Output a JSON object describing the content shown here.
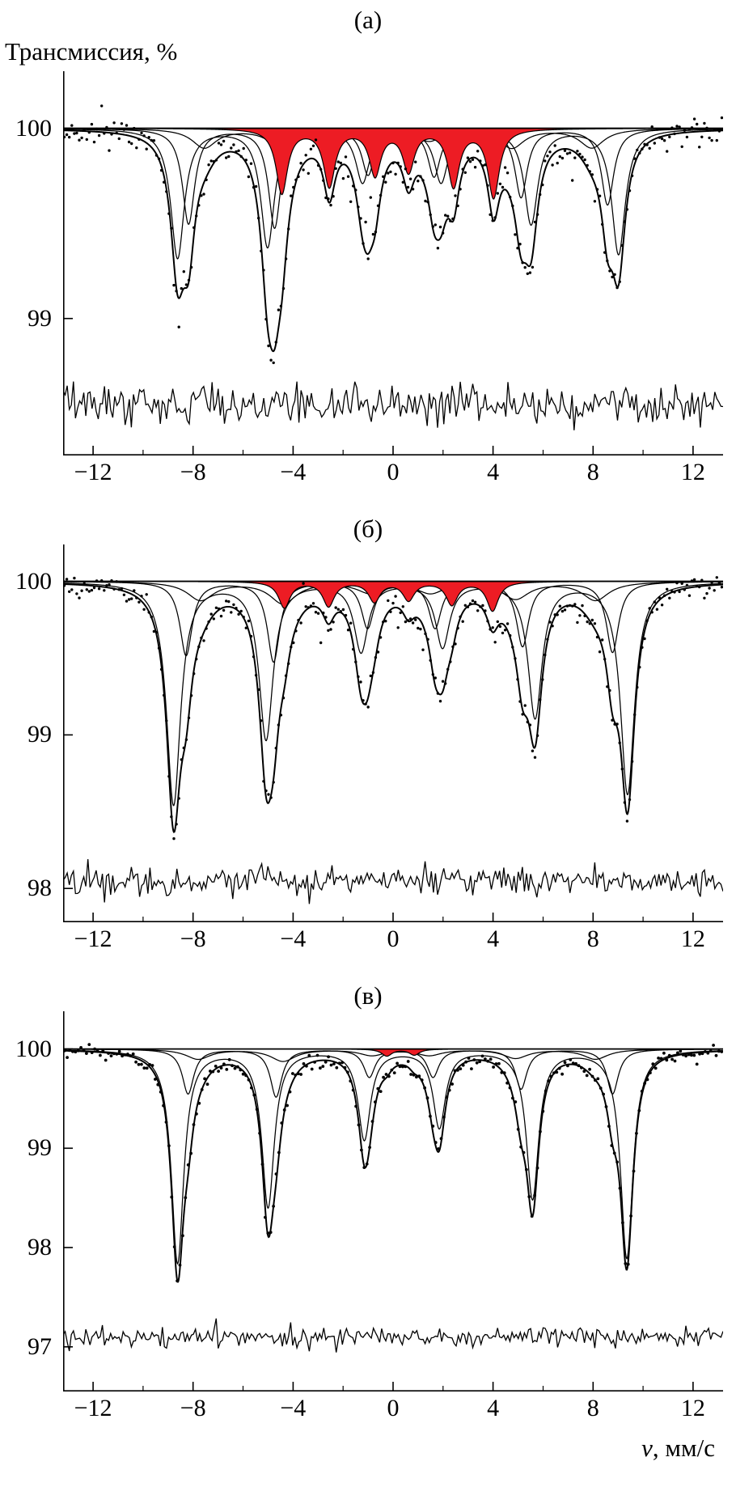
{
  "figure": {
    "y_axis_title": "Трансмиссия, %",
    "x_axis_title_var": "v",
    "x_axis_title_rest": ", мм/с"
  },
  "chart_data": [
    {
      "type": "line",
      "title": "(а)",
      "x_range": [
        -13.2,
        13.2
      ],
      "y_range": [
        98.28,
        100.3
      ],
      "baseline": 100,
      "xticks": [
        -12,
        -8,
        -4,
        0,
        4,
        8,
        12
      ],
      "xtick_labels": [
        "−12",
        "−8",
        "−4",
        "0",
        "4",
        "8",
        "12"
      ],
      "yticks": [
        99,
        100
      ],
      "ytick_labels": [
        "99",
        "100"
      ],
      "colors": {
        "curve": "#000000",
        "fill": "#ed1c24"
      },
      "components": [
        {
          "name": "sextet-1",
          "width_hwhm": 0.33,
          "lines": [
            {
              "center": -8.62,
              "depth": 0.68
            },
            {
              "center": -5.02,
              "depth": 0.62
            },
            {
              "center": -1.22,
              "depth": 0.28
            },
            {
              "center": 1.92,
              "depth": 0.28
            },
            {
              "center": 5.52,
              "depth": 0.5
            },
            {
              "center": 9.02,
              "depth": 0.66
            }
          ]
        },
        {
          "name": "sextet-2",
          "width_hwhm": 0.3,
          "lines": [
            {
              "center": -8.18,
              "depth": 0.5
            },
            {
              "center": -4.74,
              "depth": 0.52
            },
            {
              "center": -1.0,
              "depth": 0.24
            },
            {
              "center": 1.64,
              "depth": 0.25
            },
            {
              "center": 5.12,
              "depth": 0.36
            },
            {
              "center": 8.58,
              "depth": 0.4
            }
          ]
        },
        {
          "name": "sextet-3-broad",
          "width_hwhm": 0.6,
          "lines": [
            {
              "center": -7.55,
              "depth": 0.1
            },
            {
              "center": -4.38,
              "depth": 0.12
            },
            {
              "center": -0.85,
              "depth": 0.06
            },
            {
              "center": 1.45,
              "depth": 0.06
            },
            {
              "center": 4.75,
              "depth": 0.1
            },
            {
              "center": 7.95,
              "depth": 0.1
            }
          ]
        },
        {
          "name": "red-sextet",
          "fill": true,
          "width_hwhm": 0.28,
          "lines": [
            {
              "center": -4.45,
              "depth": 0.34
            },
            {
              "center": -2.55,
              "depth": 0.3
            },
            {
              "center": -0.72,
              "depth": 0.24
            },
            {
              "center": 0.62,
              "depth": 0.22
            },
            {
              "center": 2.42,
              "depth": 0.3
            },
            {
              "center": 4.02,
              "depth": 0.36
            }
          ]
        }
      ],
      "scatter": {
        "n": 265,
        "sigma": 0.04,
        "seed": 11,
        "dot_radius": 1.7
      },
      "residual": {
        "baseline": 98.55,
        "sigma": 0.05,
        "n": 320,
        "seed": 12
      }
    },
    {
      "type": "line",
      "title": "(б)",
      "x_range": [
        -13.2,
        13.2
      ],
      "y_range": [
        97.78,
        100.24
      ],
      "baseline": 100,
      "xticks": [
        -12,
        -8,
        -4,
        0,
        4,
        8,
        12
      ],
      "xtick_labels": [
        "−12",
        "−8",
        "−4",
        "0",
        "4",
        "8",
        "12"
      ],
      "yticks": [
        98,
        99,
        100
      ],
      "ytick_labels": [
        "98",
        "99",
        "100"
      ],
      "colors": {
        "curve": "#000000",
        "fill": "#ed1c24"
      },
      "components": [
        {
          "name": "sextet-1",
          "width_hwhm": 0.34,
          "lines": [
            {
              "center": -8.78,
              "depth": 1.45
            },
            {
              "center": -5.08,
              "depth": 1.02
            },
            {
              "center": -1.28,
              "depth": 0.45
            },
            {
              "center": 1.98,
              "depth": 0.42
            },
            {
              "center": 5.68,
              "depth": 0.88
            },
            {
              "center": 9.38,
              "depth": 1.38
            }
          ]
        },
        {
          "name": "sextet-2",
          "width_hwhm": 0.3,
          "lines": [
            {
              "center": -8.28,
              "depth": 0.48
            },
            {
              "center": -4.78,
              "depth": 0.52
            },
            {
              "center": -1.02,
              "depth": 0.3
            },
            {
              "center": 1.68,
              "depth": 0.3
            },
            {
              "center": 5.18,
              "depth": 0.42
            },
            {
              "center": 8.78,
              "depth": 0.46
            }
          ]
        },
        {
          "name": "sextet-3-broad",
          "width_hwhm": 0.65,
          "lines": [
            {
              "center": -7.7,
              "depth": 0.12
            },
            {
              "center": -4.4,
              "depth": 0.14
            },
            {
              "center": -0.9,
              "depth": 0.07
            },
            {
              "center": 1.5,
              "depth": 0.07
            },
            {
              "center": 4.9,
              "depth": 0.11
            },
            {
              "center": 8.1,
              "depth": 0.12
            }
          ]
        },
        {
          "name": "red-sextet",
          "fill": true,
          "width_hwhm": 0.28,
          "lines": [
            {
              "center": -4.35,
              "depth": 0.17
            },
            {
              "center": -2.58,
              "depth": 0.16
            },
            {
              "center": -0.75,
              "depth": 0.13
            },
            {
              "center": 0.62,
              "depth": 0.12
            },
            {
              "center": 2.35,
              "depth": 0.15
            },
            {
              "center": 3.98,
              "depth": 0.19
            }
          ]
        }
      ],
      "scatter": {
        "n": 265,
        "sigma": 0.035,
        "seed": 21,
        "dot_radius": 1.7
      },
      "residual": {
        "baseline": 98.05,
        "sigma": 0.045,
        "n": 320,
        "seed": 22
      }
    },
    {
      "type": "line",
      "title": "(в)",
      "x_range": [
        -13.2,
        13.2
      ],
      "y_range": [
        96.55,
        100.38
      ],
      "baseline": 100,
      "xticks": [
        -12,
        -8,
        -4,
        0,
        4,
        8,
        12
      ],
      "xtick_labels": [
        "−12",
        "−8",
        "−4",
        "0",
        "4",
        "8",
        "12"
      ],
      "yticks": [
        97,
        98,
        99,
        100
      ],
      "ytick_labels": [
        "97",
        "98",
        "99",
        "100"
      ],
      "colors": {
        "curve": "#000000",
        "fill": "#ed1c24"
      },
      "components": [
        {
          "name": "sextet-1",
          "width_hwhm": 0.3,
          "lines": [
            {
              "center": -8.62,
              "depth": 2.15
            },
            {
              "center": -5.0,
              "depth": 1.58
            },
            {
              "center": -1.15,
              "depth": 0.9
            },
            {
              "center": 1.85,
              "depth": 0.78
            },
            {
              "center": 5.58,
              "depth": 1.5
            },
            {
              "center": 9.35,
              "depth": 2.1
            }
          ]
        },
        {
          "name": "sextet-2",
          "width_hwhm": 0.28,
          "lines": [
            {
              "center": -8.2,
              "depth": 0.45
            },
            {
              "center": -4.68,
              "depth": 0.48
            },
            {
              "center": -0.95,
              "depth": 0.28
            },
            {
              "center": 1.6,
              "depth": 0.28
            },
            {
              "center": 5.12,
              "depth": 0.4
            },
            {
              "center": 8.78,
              "depth": 0.45
            }
          ]
        },
        {
          "name": "sextet-3-broad",
          "width_hwhm": 0.6,
          "lines": [
            {
              "center": -7.8,
              "depth": 0.1
            },
            {
              "center": -4.4,
              "depth": 0.12
            },
            {
              "center": -0.85,
              "depth": 0.06
            },
            {
              "center": 1.45,
              "depth": 0.06
            },
            {
              "center": 4.9,
              "depth": 0.09
            },
            {
              "center": 8.1,
              "depth": 0.1
            }
          ]
        },
        {
          "name": "red-doublet",
          "fill": true,
          "width_hwhm": 0.25,
          "lines": [
            {
              "center": -0.25,
              "depth": 0.07
            },
            {
              "center": 0.85,
              "depth": 0.06
            }
          ]
        }
      ],
      "scatter": {
        "n": 240,
        "sigma": 0.032,
        "seed": 31,
        "dot_radius": 1.9
      },
      "residual": {
        "baseline": 97.1,
        "sigma": 0.05,
        "n": 320,
        "seed": 32
      }
    }
  ]
}
